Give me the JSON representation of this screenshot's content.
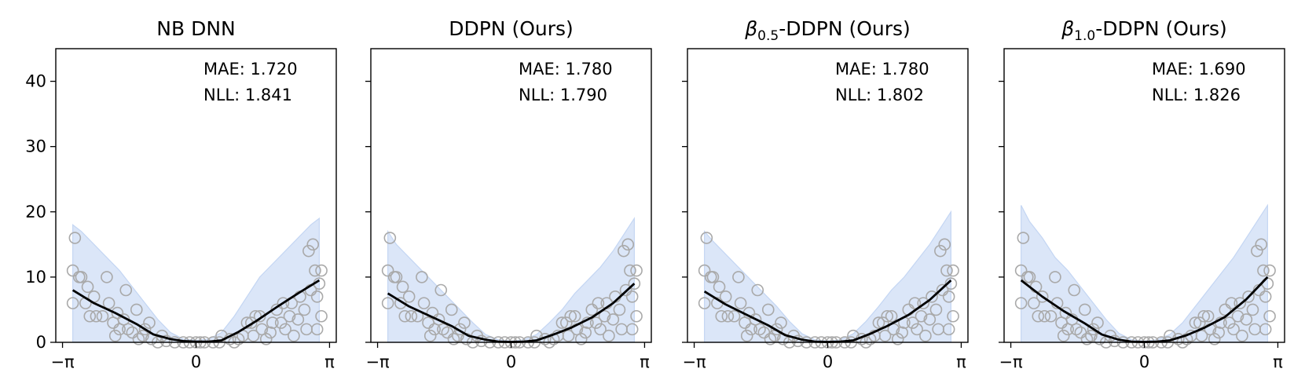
{
  "colors": {
    "band_fill": "#dbe6f8",
    "band_edge": "#c4d6f3",
    "mean_line": "#000000",
    "points": "#a9a9a9"
  },
  "chart_data": [
    {
      "type": "line",
      "title_prefix": "NB DNN",
      "title_sub": "",
      "title_suffix": "",
      "metrics": [
        "MAE: 1.720",
        "NLL: 1.841"
      ],
      "x_ticks": [
        "−π",
        "0",
        "π"
      ],
      "y_ticks": [
        "0",
        "10",
        "20",
        "30",
        "40"
      ],
      "xlim": [
        -3.3,
        3.3
      ],
      "ylim": [
        0,
        45
      ],
      "mean": {
        "x": [
          -2.9,
          -2.4,
          -1.9,
          -1.4,
          -1.0,
          -0.6,
          -0.3,
          0.0,
          0.3,
          0.6,
          1.0,
          1.4,
          1.9,
          2.4,
          2.9
        ],
        "y": [
          8.0,
          6.0,
          4.5,
          2.8,
          1.2,
          0.5,
          0.2,
          0.1,
          0.1,
          0.3,
          1.6,
          3.2,
          5.4,
          7.5,
          9.5
        ]
      },
      "band": {
        "x": [
          -2.9,
          -2.7,
          -2.4,
          -2.1,
          -1.8,
          -1.5,
          -1.2,
          -0.9,
          -0.6,
          -0.3,
          0.0,
          0.3,
          0.6,
          0.9,
          1.2,
          1.5,
          1.8,
          2.1,
          2.4,
          2.7,
          2.9
        ],
        "lower": [
          0,
          0,
          0,
          0,
          0,
          0,
          0,
          0,
          0,
          0,
          0,
          0,
          0,
          0,
          0,
          0,
          0,
          0,
          0,
          0,
          0
        ],
        "upper": [
          18,
          17,
          15,
          13,
          11,
          8.5,
          6,
          3.5,
          1.5,
          0.5,
          0.3,
          0.5,
          1.5,
          4,
          7,
          10,
          12,
          14,
          16,
          18,
          19
        ]
      }
    },
    {
      "type": "line",
      "title_prefix": "DDPN (Ours)",
      "title_sub": "",
      "title_suffix": "",
      "metrics": [
        "MAE: 1.780",
        "NLL: 1.790"
      ],
      "x_ticks": [
        "−π",
        "0",
        "π"
      ],
      "y_ticks": [
        "0",
        "10",
        "20",
        "30",
        "40"
      ],
      "xlim": [
        -3.3,
        3.3
      ],
      "ylim": [
        0,
        45
      ],
      "mean": {
        "x": [
          -2.9,
          -2.4,
          -1.9,
          -1.4,
          -1.0,
          -0.6,
          -0.3,
          0.0,
          0.3,
          0.6,
          1.0,
          1.4,
          1.9,
          2.4,
          2.9
        ],
        "y": [
          7.5,
          5.5,
          4.0,
          2.5,
          1.0,
          0.4,
          0.1,
          0.05,
          0.1,
          0.3,
          1.2,
          2.2,
          3.8,
          6.0,
          9.0
        ]
      },
      "band": {
        "x": [
          -2.9,
          -2.7,
          -2.4,
          -2.1,
          -1.8,
          -1.5,
          -1.2,
          -0.9,
          -0.6,
          -0.3,
          0.0,
          0.3,
          0.6,
          0.9,
          1.2,
          1.5,
          1.8,
          2.1,
          2.4,
          2.7,
          2.9
        ],
        "lower": [
          0,
          0,
          0,
          0,
          0,
          0,
          0,
          0,
          0,
          0,
          0,
          0,
          0,
          0,
          0,
          0,
          0,
          0,
          0,
          0,
          0
        ],
        "upper": [
          17,
          15,
          13,
          11,
          9,
          7,
          5,
          3,
          1.2,
          0.4,
          0.2,
          0.4,
          1.2,
          3,
          5,
          7.5,
          9.5,
          11.5,
          14,
          17,
          19
        ]
      }
    },
    {
      "type": "line",
      "title_prefix": "β",
      "title_sub": "0.5",
      "title_suffix": "-DDPN (Ours)",
      "metrics": [
        "MAE: 1.780",
        "NLL: 1.802"
      ],
      "x_ticks": [
        "−π",
        "0",
        "π"
      ],
      "y_ticks": [
        "0",
        "10",
        "20",
        "30",
        "40"
      ],
      "xlim": [
        -3.3,
        3.3
      ],
      "ylim": [
        0,
        45
      ],
      "mean": {
        "x": [
          -2.9,
          -2.4,
          -1.9,
          -1.4,
          -1.0,
          -0.6,
          -0.3,
          0.0,
          0.3,
          0.6,
          1.0,
          1.4,
          1.9,
          2.4,
          2.9
        ],
        "y": [
          7.8,
          5.8,
          4.2,
          2.6,
          1.1,
          0.4,
          0.1,
          0.05,
          0.1,
          0.3,
          1.3,
          2.5,
          4.2,
          6.5,
          9.5
        ]
      },
      "band": {
        "x": [
          -2.9,
          -2.7,
          -2.4,
          -2.1,
          -1.8,
          -1.5,
          -1.2,
          -0.9,
          -0.6,
          -0.3,
          0.0,
          0.3,
          0.6,
          0.9,
          1.2,
          1.5,
          1.8,
          2.1,
          2.4,
          2.7,
          2.9
        ],
        "lower": [
          0,
          0,
          0,
          0,
          0,
          0,
          0,
          0,
          0,
          0,
          0,
          0,
          0,
          0,
          0,
          0,
          0,
          0,
          0,
          0,
          0
        ],
        "upper": [
          17,
          15.5,
          13.5,
          11.5,
          9.5,
          7.5,
          5.5,
          3.2,
          1.3,
          0.4,
          0.2,
          0.4,
          1.3,
          3.2,
          5.5,
          8,
          10,
          12.5,
          15,
          18,
          20
        ]
      }
    },
    {
      "type": "line",
      "title_prefix": "β",
      "title_sub": "1.0",
      "title_suffix": "-DDPN (Ours)",
      "metrics": [
        "MAE: 1.690",
        "NLL: 1.826"
      ],
      "x_ticks": [
        "−π",
        "0",
        "π"
      ],
      "y_ticks": [
        "0",
        "10",
        "20",
        "30",
        "40"
      ],
      "xlim": [
        -3.3,
        3.3
      ],
      "ylim": [
        0,
        45
      ],
      "mean": {
        "x": [
          -2.9,
          -2.4,
          -1.9,
          -1.4,
          -1.0,
          -0.6,
          -0.3,
          0.0,
          0.3,
          0.6,
          1.0,
          1.4,
          1.9,
          2.4,
          2.9
        ],
        "y": [
          9.5,
          7.0,
          4.8,
          2.9,
          1.2,
          0.4,
          0.1,
          0.05,
          0.1,
          0.3,
          1.1,
          2.2,
          3.9,
          6.6,
          10.0
        ]
      },
      "band": {
        "x": [
          -2.9,
          -2.7,
          -2.4,
          -2.1,
          -1.8,
          -1.5,
          -1.2,
          -0.9,
          -0.6,
          -0.3,
          0.0,
          0.3,
          0.6,
          0.9,
          1.2,
          1.5,
          1.8,
          2.1,
          2.4,
          2.7,
          2.9
        ],
        "lower": [
          0,
          0,
          0,
          0,
          0,
          0,
          0,
          0,
          0,
          0,
          0,
          0,
          0,
          0,
          0,
          0,
          0,
          0,
          0,
          0,
          0
        ],
        "upper": [
          21,
          18.5,
          16,
          13,
          11,
          8.5,
          6,
          3.5,
          1.4,
          0.4,
          0.2,
          0.4,
          1.2,
          3,
          5.5,
          8,
          10.5,
          13,
          16,
          19,
          21
        ]
      }
    }
  ],
  "scatter_points": [
    [
      -2.9,
      11
    ],
    [
      -2.9,
      6
    ],
    [
      -2.85,
      16
    ],
    [
      -2.7,
      10
    ],
    [
      -2.75,
      10
    ],
    [
      -2.6,
      6
    ],
    [
      -2.55,
      8.5
    ],
    [
      -2.5,
      4
    ],
    [
      -2.4,
      7
    ],
    [
      -2.35,
      4
    ],
    [
      -2.2,
      4
    ],
    [
      -2.1,
      10
    ],
    [
      -2.05,
      6
    ],
    [
      -1.95,
      3
    ],
    [
      -1.9,
      1
    ],
    [
      -1.85,
      4.5
    ],
    [
      -1.8,
      2
    ],
    [
      -1.7,
      3.5
    ],
    [
      -1.65,
      8
    ],
    [
      -1.6,
      2
    ],
    [
      -1.5,
      1.5
    ],
    [
      -1.4,
      5
    ],
    [
      -1.35,
      0.5
    ],
    [
      -1.25,
      1
    ],
    [
      -1.2,
      2
    ],
    [
      -1.1,
      3
    ],
    [
      -1.05,
      0.5
    ],
    [
      -0.9,
      0
    ],
    [
      -0.8,
      1
    ],
    [
      -0.7,
      0.2
    ],
    [
      -0.5,
      0
    ],
    [
      -0.3,
      0
    ],
    [
      -0.15,
      0
    ],
    [
      0.0,
      0
    ],
    [
      0.1,
      0
    ],
    [
      0.2,
      0
    ],
    [
      0.4,
      0
    ],
    [
      0.55,
      0
    ],
    [
      0.6,
      1
    ],
    [
      0.8,
      0.5
    ],
    [
      0.9,
      0
    ],
    [
      1.0,
      0.5
    ],
    [
      1.1,
      1
    ],
    [
      1.2,
      3
    ],
    [
      1.3,
      3
    ],
    [
      1.35,
      1
    ],
    [
      1.4,
      4
    ],
    [
      1.5,
      4
    ],
    [
      1.55,
      2
    ],
    [
      1.65,
      0.5
    ],
    [
      1.75,
      1.5
    ],
    [
      1.8,
      3
    ],
    [
      1.9,
      5
    ],
    [
      2.0,
      3
    ],
    [
      2.05,
      6
    ],
    [
      2.1,
      2
    ],
    [
      2.2,
      4
    ],
    [
      2.25,
      6
    ],
    [
      2.3,
      1
    ],
    [
      2.4,
      3.5
    ],
    [
      2.45,
      7
    ],
    [
      2.55,
      5
    ],
    [
      2.6,
      2
    ],
    [
      2.65,
      14
    ],
    [
      2.7,
      8
    ],
    [
      2.75,
      15
    ],
    [
      2.8,
      11
    ],
    [
      2.85,
      2
    ],
    [
      2.85,
      7
    ],
    [
      2.9,
      9
    ],
    [
      2.95,
      11
    ],
    [
      2.95,
      4
    ]
  ]
}
